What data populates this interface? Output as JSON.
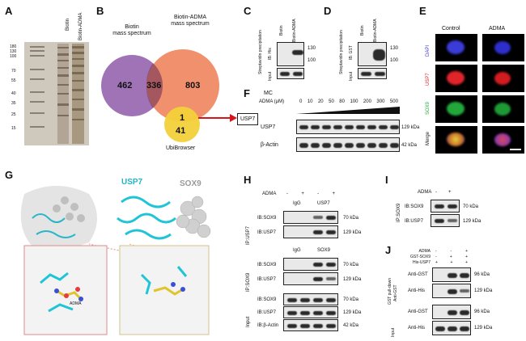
{
  "panels": {
    "A": "A",
    "B": "B",
    "C": "C",
    "D": "D",
    "E": "E",
    "F": "F",
    "G": "G",
    "H": "H",
    "I": "I",
    "J": "J"
  },
  "panelA": {
    "lanes": [
      "Biotin",
      "Biotin-ADMA"
    ],
    "markers": [
      "180",
      "130",
      "100",
      "70",
      "55",
      "40",
      "35",
      "25",
      "15"
    ]
  },
  "panelB": {
    "biotin_label": "Biotin\nmass spectrum",
    "adma_label": "Biotin-ADMA\nmass spectrum",
    "ubi_label": "UbiBrowser",
    "n_biotin_only": "462",
    "n_overlap": "336",
    "n_adma_only": "803",
    "n_triple": "1",
    "n_ubi_only": "41",
    "target": "USP7",
    "colors": {
      "biotin": "#8e5aa8",
      "adma": "#ef7d52",
      "ubi": "#f2d13a",
      "arrow": "#d7161b"
    }
  },
  "panelC": {
    "lanes": [
      "Biotin",
      "Biotin-ADMA"
    ],
    "side_label": "Streptavidin precipitation",
    "ib": "IB: His",
    "input": "Input",
    "markers": [
      "130",
      "100"
    ]
  },
  "panelD": {
    "lanes": [
      "Biotin",
      "Biotin-ADMA"
    ],
    "side_label": "Streptavidin precipitation",
    "ib": "IB: GST",
    "input": "Input",
    "markers": [
      "130",
      "100"
    ]
  },
  "panelE": {
    "cols": [
      "Control",
      "ADMA"
    ],
    "rows": [
      {
        "label": "DAPI",
        "color": "#3b3bd8"
      },
      {
        "label": "USP7",
        "color": "#e0252a"
      },
      {
        "label": "SOX9",
        "color": "#22a83a"
      },
      {
        "label": "Merge",
        "color": "#222222"
      }
    ]
  },
  "panelF": {
    "mc": "MC",
    "adma_label": "ADMA (μM)",
    "doses": [
      "0",
      "10",
      "20",
      "50",
      "80",
      "100",
      "200",
      "300",
      "500"
    ],
    "blots": [
      {
        "label": "USP7",
        "kda": "129 kDa"
      },
      {
        "label": "β-Actin",
        "kda": "42 kDa"
      }
    ]
  },
  "panelG": {
    "usp7": "USP7",
    "sox9": "SOX9",
    "adma": "ADMA"
  },
  "panelH": {
    "adma_label": "ADMA",
    "signs": [
      "-",
      "+",
      "-",
      "+"
    ],
    "groups": [
      {
        "side": "IP:USP7",
        "header": [
          "IgG",
          "USP7"
        ],
        "rows": [
          {
            "ib": "IB:SOX9",
            "kda": "70 kDa"
          },
          {
            "ib": "IB:USP7",
            "kda": "129 kDa"
          }
        ]
      },
      {
        "side": "IP:SOX9",
        "header": [
          "IgG",
          "SOX9"
        ],
        "rows": [
          {
            "ib": "IB:SOX9",
            "kda": "70 kDa"
          },
          {
            "ib": "IB:USP7",
            "kda": "129 kDa"
          }
        ]
      },
      {
        "side": "Input",
        "header": [],
        "rows": [
          {
            "ib": "IB:SOX9",
            "kda": "70 kDa"
          },
          {
            "ib": "IB:USP7",
            "kda": "129 kDa"
          },
          {
            "ib": "IB:β-Actin",
            "kda": "42 kDa"
          }
        ]
      }
    ]
  },
  "panelI": {
    "adma_label": "ADMA",
    "signs": [
      "-",
      "+"
    ],
    "side": "IP:SOX9",
    "rows": [
      {
        "ib": "IB:SOX9",
        "kda": "70 kDa"
      },
      {
        "ib": "IB:USP7",
        "kda": "129 kDa"
      }
    ]
  },
  "panelJ": {
    "conds": [
      {
        "label": "ADMA",
        "signs": [
          "-",
          "-",
          "+"
        ]
      },
      {
        "label": "GST-SOX9",
        "signs": [
          "-",
          "+",
          "+"
        ]
      },
      {
        "label": "His-USP7",
        "signs": [
          "+",
          "+",
          "+"
        ]
      }
    ],
    "side1": "GST pull-down",
    "side1b": "Anti-GST",
    "side2": "Input",
    "rows1": [
      {
        "ab": "Anti-GST",
        "kda": "96 kDa"
      },
      {
        "ab": "Anti-His",
        "kda": "129 kDa"
      }
    ],
    "rows2": [
      {
        "ab": "Anti-GST",
        "kda": "96 kDa"
      },
      {
        "ab": "Anti-His",
        "kda": "129 kDa"
      }
    ]
  }
}
